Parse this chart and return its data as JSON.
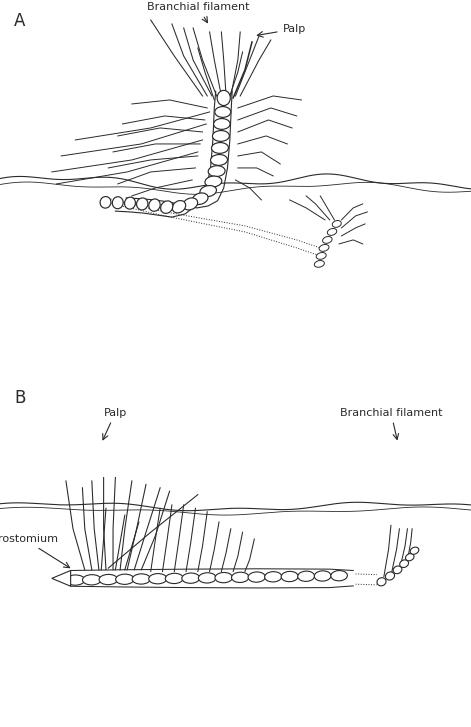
{
  "bg_color": "#ffffff",
  "line_color": "#2a2a2a",
  "label_A": "A",
  "label_B": "B",
  "label_branchial_A": "Branchial filament",
  "label_palp_A": "Palp",
  "label_palp_B": "Palp",
  "label_branchial_B": "Branchial filament",
  "label_prostomium_B": "prostomium",
  "figsize": [
    4.71,
    7.27
  ],
  "dpi": 100
}
